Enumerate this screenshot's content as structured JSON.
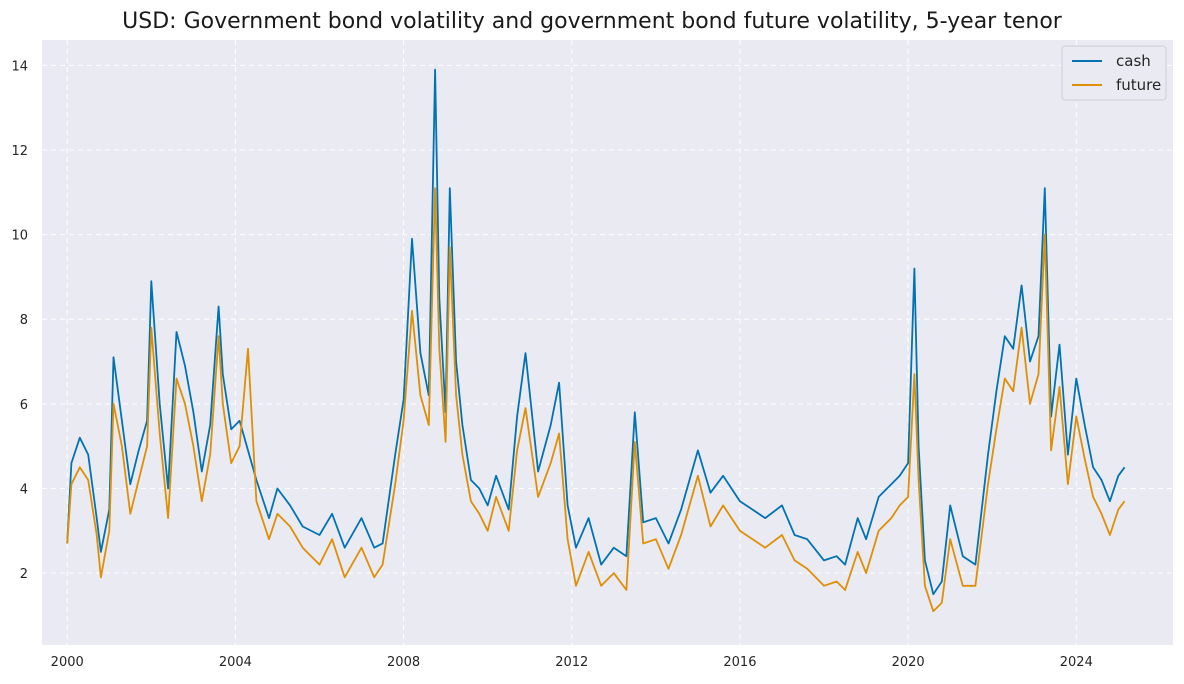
{
  "chart_data": {
    "type": "line",
    "title": "USD: Government bond volatility and government bond future volatility, 5-year tenor",
    "xlabel": "",
    "ylabel": "",
    "xlim": [
      1999.4,
      2026.3
    ],
    "ylim": [
      0.3,
      14.6
    ],
    "x_ticks": [
      "2000",
      "2004",
      "2008",
      "2012",
      "2016",
      "2020",
      "2024"
    ],
    "y_ticks": [
      "2",
      "4",
      "6",
      "8",
      "10",
      "12",
      "14"
    ],
    "grid": true,
    "legend_position": "top-right",
    "series": [
      {
        "name": "cash",
        "color": "#0173b2",
        "x": [
          2000.0,
          2000.1,
          2000.3,
          2000.5,
          2000.7,
          2000.8,
          2001.0,
          2001.1,
          2001.3,
          2001.5,
          2001.7,
          2001.9,
          2002.0,
          2002.2,
          2002.4,
          2002.6,
          2002.8,
          2003.0,
          2003.2,
          2003.4,
          2003.6,
          2003.7,
          2003.9,
          2004.1,
          2004.3,
          2004.5,
          2004.8,
          2005.0,
          2005.3,
          2005.6,
          2006.0,
          2006.3,
          2006.6,
          2007.0,
          2007.3,
          2007.5,
          2007.8,
          2008.0,
          2008.2,
          2008.4,
          2008.6,
          2008.75,
          2008.85,
          2009.0,
          2009.1,
          2009.25,
          2009.4,
          2009.6,
          2009.8,
          2010.0,
          2010.2,
          2010.5,
          2010.7,
          2010.9,
          2011.2,
          2011.5,
          2011.7,
          2011.9,
          2012.1,
          2012.4,
          2012.7,
          2013.0,
          2013.3,
          2013.5,
          2013.7,
          2014.0,
          2014.3,
          2014.6,
          2015.0,
          2015.3,
          2015.6,
          2016.0,
          2016.3,
          2016.6,
          2017.0,
          2017.3,
          2017.6,
          2018.0,
          2018.3,
          2018.5,
          2018.8,
          2019.0,
          2019.3,
          2019.6,
          2019.8,
          2020.0,
          2020.15,
          2020.25,
          2020.4,
          2020.6,
          2020.8,
          2021.0,
          2021.3,
          2021.6,
          2021.9,
          2022.1,
          2022.3,
          2022.5,
          2022.7,
          2022.9,
          2023.1,
          2023.25,
          2023.4,
          2023.6,
          2023.8,
          2024.0,
          2024.2,
          2024.4,
          2024.6,
          2024.8,
          2025.0,
          2025.15
        ],
        "values": [
          2.7,
          4.6,
          5.2,
          4.8,
          3.3,
          2.5,
          3.5,
          7.1,
          5.6,
          4.1,
          4.9,
          5.6,
          8.9,
          6.0,
          4.0,
          7.7,
          6.9,
          5.8,
          4.4,
          5.5,
          8.3,
          6.7,
          5.4,
          5.6,
          4.9,
          4.2,
          3.3,
          4.0,
          3.6,
          3.1,
          2.9,
          3.4,
          2.6,
          3.3,
          2.6,
          2.7,
          4.8,
          6.1,
          9.9,
          7.2,
          6.2,
          13.9,
          8.5,
          5.8,
          11.1,
          7.0,
          5.5,
          4.2,
          4.0,
          3.6,
          4.3,
          3.5,
          5.7,
          7.2,
          4.4,
          5.5,
          6.5,
          3.6,
          2.6,
          3.3,
          2.2,
          2.6,
          2.4,
          5.8,
          3.2,
          3.3,
          2.7,
          3.5,
          4.9,
          3.9,
          4.3,
          3.7,
          3.5,
          3.3,
          3.6,
          2.9,
          2.8,
          2.3,
          2.4,
          2.2,
          3.3,
          2.8,
          3.8,
          4.1,
          4.3,
          4.6,
          9.2,
          5.0,
          2.3,
          1.5,
          1.8,
          3.6,
          2.4,
          2.2,
          4.8,
          6.3,
          7.6,
          7.3,
          8.8,
          7.0,
          7.6,
          11.1,
          5.7,
          7.4,
          4.8,
          6.6,
          5.5,
          4.5,
          4.2,
          3.7,
          4.3,
          4.5
        ]
      },
      {
        "name": "future",
        "color": "#de8f05",
        "x": [
          2000.0,
          2000.1,
          2000.3,
          2000.5,
          2000.7,
          2000.8,
          2001.0,
          2001.1,
          2001.3,
          2001.5,
          2001.7,
          2001.9,
          2002.0,
          2002.2,
          2002.4,
          2002.6,
          2002.8,
          2003.0,
          2003.2,
          2003.4,
          2003.6,
          2003.7,
          2003.9,
          2004.1,
          2004.3,
          2004.5,
          2004.8,
          2005.0,
          2005.3,
          2005.6,
          2006.0,
          2006.3,
          2006.6,
          2007.0,
          2007.3,
          2007.5,
          2007.8,
          2008.0,
          2008.2,
          2008.4,
          2008.6,
          2008.75,
          2008.85,
          2009.0,
          2009.1,
          2009.25,
          2009.4,
          2009.6,
          2009.8,
          2010.0,
          2010.2,
          2010.5,
          2010.7,
          2010.9,
          2011.2,
          2011.5,
          2011.7,
          2011.9,
          2012.1,
          2012.4,
          2012.7,
          2013.0,
          2013.3,
          2013.5,
          2013.7,
          2014.0,
          2014.3,
          2014.6,
          2015.0,
          2015.3,
          2015.6,
          2016.0,
          2016.3,
          2016.6,
          2017.0,
          2017.3,
          2017.6,
          2018.0,
          2018.3,
          2018.5,
          2018.8,
          2019.0,
          2019.3,
          2019.6,
          2019.8,
          2020.0,
          2020.15,
          2020.25,
          2020.4,
          2020.6,
          2020.8,
          2021.0,
          2021.3,
          2021.6,
          2021.9,
          2022.1,
          2022.3,
          2022.5,
          2022.7,
          2022.9,
          2023.1,
          2023.25,
          2023.4,
          2023.6,
          2023.8,
          2024.0,
          2024.2,
          2024.4,
          2024.6,
          2024.8,
          2025.0,
          2025.15
        ],
        "values": [
          2.7,
          4.1,
          4.5,
          4.2,
          2.9,
          1.9,
          3.0,
          6.0,
          5.0,
          3.4,
          4.2,
          5.0,
          7.8,
          5.3,
          3.3,
          6.6,
          6.0,
          5.0,
          3.7,
          4.8,
          7.6,
          6.0,
          4.6,
          5.0,
          7.3,
          3.7,
          2.8,
          3.4,
          3.1,
          2.6,
          2.2,
          2.8,
          1.9,
          2.6,
          1.9,
          2.2,
          4.1,
          5.6,
          8.2,
          6.2,
          5.5,
          11.1,
          7.3,
          5.1,
          9.7,
          6.2,
          4.8,
          3.7,
          3.4,
          3.0,
          3.8,
          3.0,
          4.9,
          5.9,
          3.8,
          4.6,
          5.3,
          2.8,
          1.7,
          2.5,
          1.7,
          2.0,
          1.6,
          5.1,
          2.7,
          2.8,
          2.1,
          2.9,
          4.3,
          3.1,
          3.6,
          3.0,
          2.8,
          2.6,
          2.9,
          2.3,
          2.1,
          1.7,
          1.8,
          1.6,
          2.5,
          2.0,
          3.0,
          3.3,
          3.6,
          3.8,
          6.7,
          4.2,
          1.7,
          1.1,
          1.3,
          2.8,
          1.7,
          1.7,
          4.1,
          5.4,
          6.6,
          6.3,
          7.8,
          6.0,
          6.7,
          10.0,
          4.9,
          6.4,
          4.1,
          5.7,
          4.7,
          3.8,
          3.4,
          2.9,
          3.5,
          3.7
        ]
      }
    ]
  }
}
